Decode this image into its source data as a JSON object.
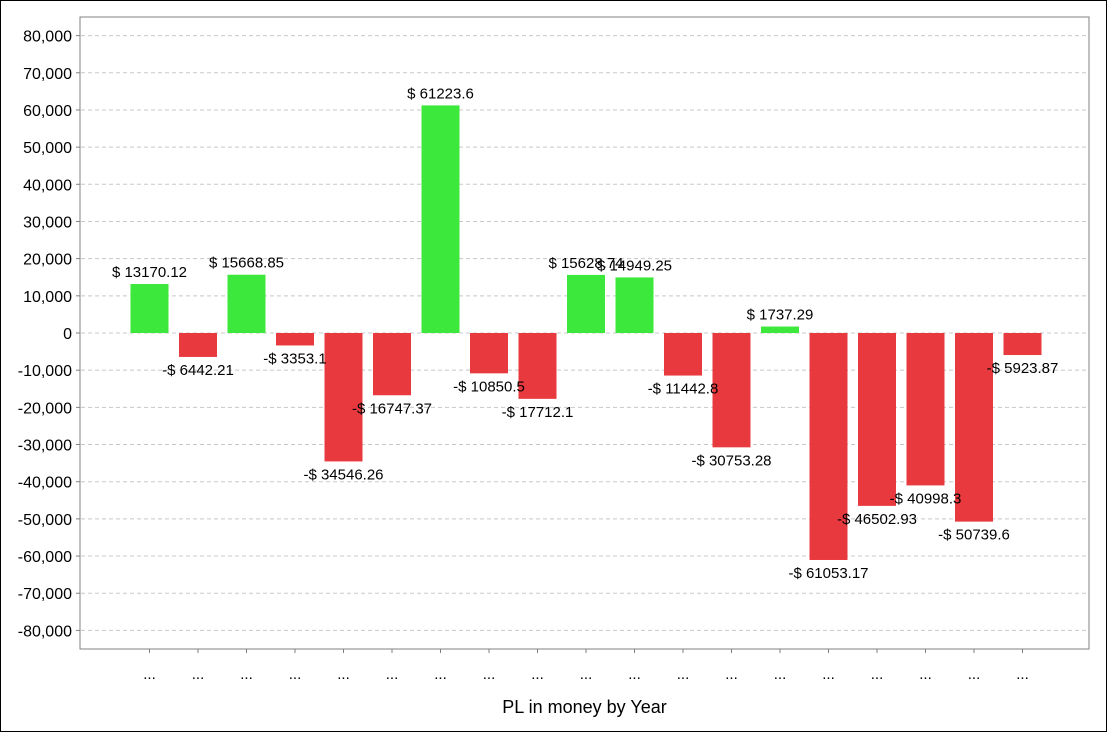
{
  "chart_data": {
    "type": "bar",
    "xlabel": "PL in money by Year",
    "ylabel": "",
    "ylim": [
      -85000,
      85000
    ],
    "yticks": [
      80000,
      70000,
      60000,
      50000,
      40000,
      30000,
      20000,
      10000,
      0,
      -10000,
      -20000,
      -30000,
      -40000,
      -50000,
      -60000,
      -70000,
      -80000
    ],
    "ytick_labels": [
      "80,000",
      "70,000",
      "60,000",
      "50,000",
      "40,000",
      "30,000",
      "20,000",
      "10,000",
      "0",
      "-10,000",
      "-20,000",
      "-30,000",
      "-40,000",
      "-50,000",
      "-60,000",
      "-70,000",
      "-80,000"
    ],
    "grid": true,
    "colors": {
      "positive": "#3be83b",
      "negative": "#e8393e",
      "grid": "#c8c8c8",
      "axis": "#808080"
    },
    "categories": [
      "...",
      "...",
      "...",
      "...",
      "...",
      "...",
      "...",
      "...",
      "...",
      "...",
      "...",
      "...",
      "...",
      "...",
      "...",
      "...",
      "...",
      "...",
      "..."
    ],
    "values": [
      13170.12,
      -6442.21,
      15668.85,
      -3353.1,
      -34546.26,
      -16747.37,
      61223.6,
      -10850.5,
      -17712.1,
      15628.74,
      14949.25,
      -11442.8,
      -30753.28,
      1737.29,
      -61053.17,
      -46502.93,
      -40998.3,
      -50739.6,
      -5923.87
    ],
    "data_labels": [
      "$ 13170.12",
      "-$ 6442.21",
      "$ 15668.85",
      "-$ 3353.1",
      "-$ 34546.26",
      "-$ 16747.37",
      "$ 61223.6",
      "-$ 10850.5",
      "-$ 17712.1",
      "$ 15628.74",
      "$ 14949.25",
      "-$ 11442.8",
      "-$ 30753.28",
      "$ 1737.29",
      "-$ 61053.17",
      "-$ 46502.93",
      "-$ 40998.3",
      "-$ 50739.6",
      "-$ 5923.87"
    ]
  }
}
